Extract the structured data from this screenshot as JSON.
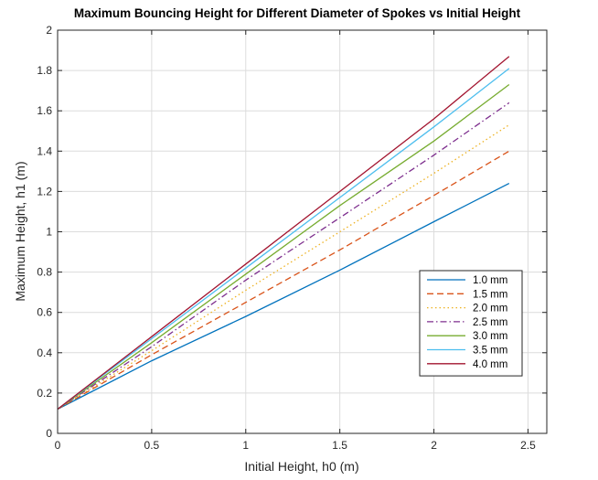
{
  "chart_data": {
    "type": "line",
    "title": "Maximum Bouncing Height for Different Diameter of Spokes vs Initial Height",
    "xlabel": "Initial Height, h0 (m)",
    "ylabel": "Maximum Height, h1 (m)",
    "xlim": [
      0,
      2.6
    ],
    "ylim": [
      0,
      2
    ],
    "xticks": [
      "0",
      "0.5",
      "1",
      "1.5",
      "2",
      "2.5"
    ],
    "yticks": [
      "0",
      "0.2",
      "0.4",
      "0.6",
      "0.8",
      "1",
      "1.2",
      "1.4",
      "1.6",
      "1.8",
      "2"
    ],
    "grid": true,
    "legend_position": "lower-right",
    "x": [
      0,
      0.5,
      1.0,
      1.5,
      2.0,
      2.4
    ],
    "series": [
      {
        "name": "1.0 mm",
        "color": "#0072BD",
        "dash": "solid",
        "values": [
          0.12,
          0.36,
          0.58,
          0.81,
          1.05,
          1.24
        ]
      },
      {
        "name": "1.5 mm",
        "color": "#D95319",
        "dash": "dashed",
        "values": [
          0.12,
          0.39,
          0.65,
          0.91,
          1.18,
          1.4
        ]
      },
      {
        "name": "2.0 mm",
        "color": "#EDB120",
        "dash": "dotted",
        "values": [
          0.12,
          0.41,
          0.71,
          1.0,
          1.29,
          1.53
        ]
      },
      {
        "name": "2.5 mm",
        "color": "#7E2F8E",
        "dash": "dashdot",
        "values": [
          0.12,
          0.43,
          0.76,
          1.07,
          1.38,
          1.64
        ]
      },
      {
        "name": "3.0 mm",
        "color": "#77AC30",
        "dash": "solid",
        "values": [
          0.12,
          0.45,
          0.79,
          1.13,
          1.45,
          1.73
        ]
      },
      {
        "name": "3.5 mm",
        "color": "#4DBEEE",
        "dash": "solid",
        "values": [
          0.12,
          0.47,
          0.82,
          1.17,
          1.52,
          1.81
        ]
      },
      {
        "name": "4.0 mm",
        "color": "#A2142F",
        "dash": "solid",
        "values": [
          0.12,
          0.48,
          0.84,
          1.2,
          1.56,
          1.87
        ]
      }
    ]
  }
}
